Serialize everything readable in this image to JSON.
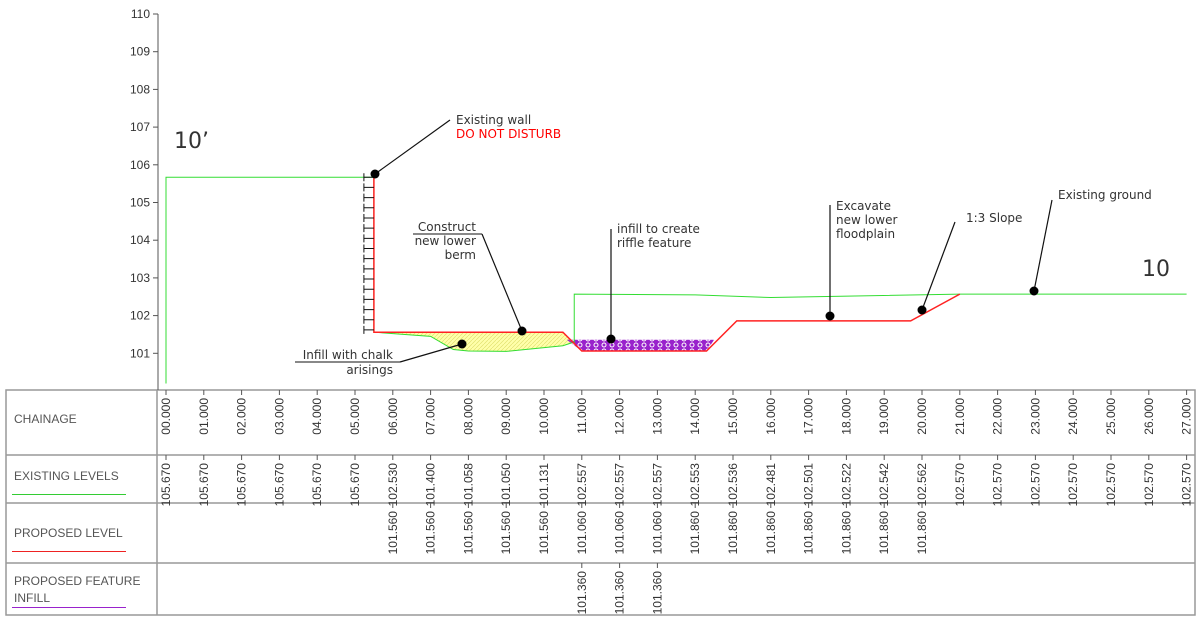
{
  "section_labels": {
    "left": "10’",
    "right": "10"
  },
  "y_axis": {
    "ticks": [
      "101",
      "102",
      "103",
      "104",
      "105",
      "106",
      "107",
      "108",
      "109",
      "110"
    ]
  },
  "annotations": {
    "wall_line1": "Existing wall",
    "wall_line2": "DO NOT DISTURB",
    "berm_line1": "Construct",
    "berm_line2": "new lower",
    "berm_line3": "berm",
    "chalk_line1": "Infill with chalk",
    "chalk_line2": "arisings",
    "riffle_line1": "infill to create",
    "riffle_line2": "riffle feature",
    "floodplain_line1": "Excavate",
    "floodplain_line2": "new lower",
    "floodplain_line3": "floodplain",
    "slope": "1:3 Slope",
    "ground": "Existing ground"
  },
  "colors": {
    "existing": "#33dd33",
    "proposed": "#ff2222",
    "infill": "#9922cc",
    "chalk": "#ffffaa",
    "warning": "#ff0000"
  },
  "table": {
    "rows": [
      {
        "label": "CHAINAGE",
        "color": null
      },
      {
        "label": "EXISTING LEVELS",
        "color": "#33cc33"
      },
      {
        "label": "PROPOSED LEVEL",
        "color": "#ee2222"
      },
      {
        "label": "PROPOSED FEATURE INFILL",
        "color": "#9922cc"
      }
    ],
    "chainage": [
      "00.000",
      "01.000",
      "02.000",
      "03.000",
      "04.000",
      "05.000",
      "06.000",
      "07.000",
      "08.000",
      "09.000",
      "10.000",
      "11.000",
      "12.000",
      "13.000",
      "14.000",
      "15.000",
      "16.000",
      "17.000",
      "18.000",
      "19.000",
      "20.000",
      "21.000",
      "22.000",
      "23.000",
      "24.000",
      "25.000",
      "26.000",
      "27.000"
    ],
    "existing": [
      "105.670",
      "105.670",
      "105.670",
      "105.670",
      "105.670",
      "105.670",
      "102.530",
      "101.400",
      "101.058",
      "101.050",
      "101.131",
      "102.557",
      "102.557",
      "102.557",
      "102.553",
      "102.536",
      "102.481",
      "102.501",
      "102.522",
      "102.542",
      "102.562",
      "102.570",
      "102.570",
      "102.570",
      "102.570",
      "102.570",
      "102.570",
      "102.570"
    ],
    "proposed": [
      "",
      "",
      "",
      "",
      "",
      "",
      "101.560",
      "101.560",
      "101.560",
      "101.560",
      "101.560",
      "101.060",
      "101.060",
      "101.060",
      "101.860",
      "101.860",
      "101.860",
      "101.860",
      "101.860",
      "101.860",
      "101.860",
      "",
      "",
      "",
      "",
      "",
      "",
      ""
    ],
    "infill": [
      "",
      "",
      "",
      "",
      "",
      "",
      "",
      "",
      "",
      "",
      "",
      "101.360",
      "101.360",
      "101.360",
      "",
      "",
      "",
      "",
      "",
      "",
      "",
      "",
      "",
      "",
      "",
      "",
      "",
      ""
    ]
  }
}
